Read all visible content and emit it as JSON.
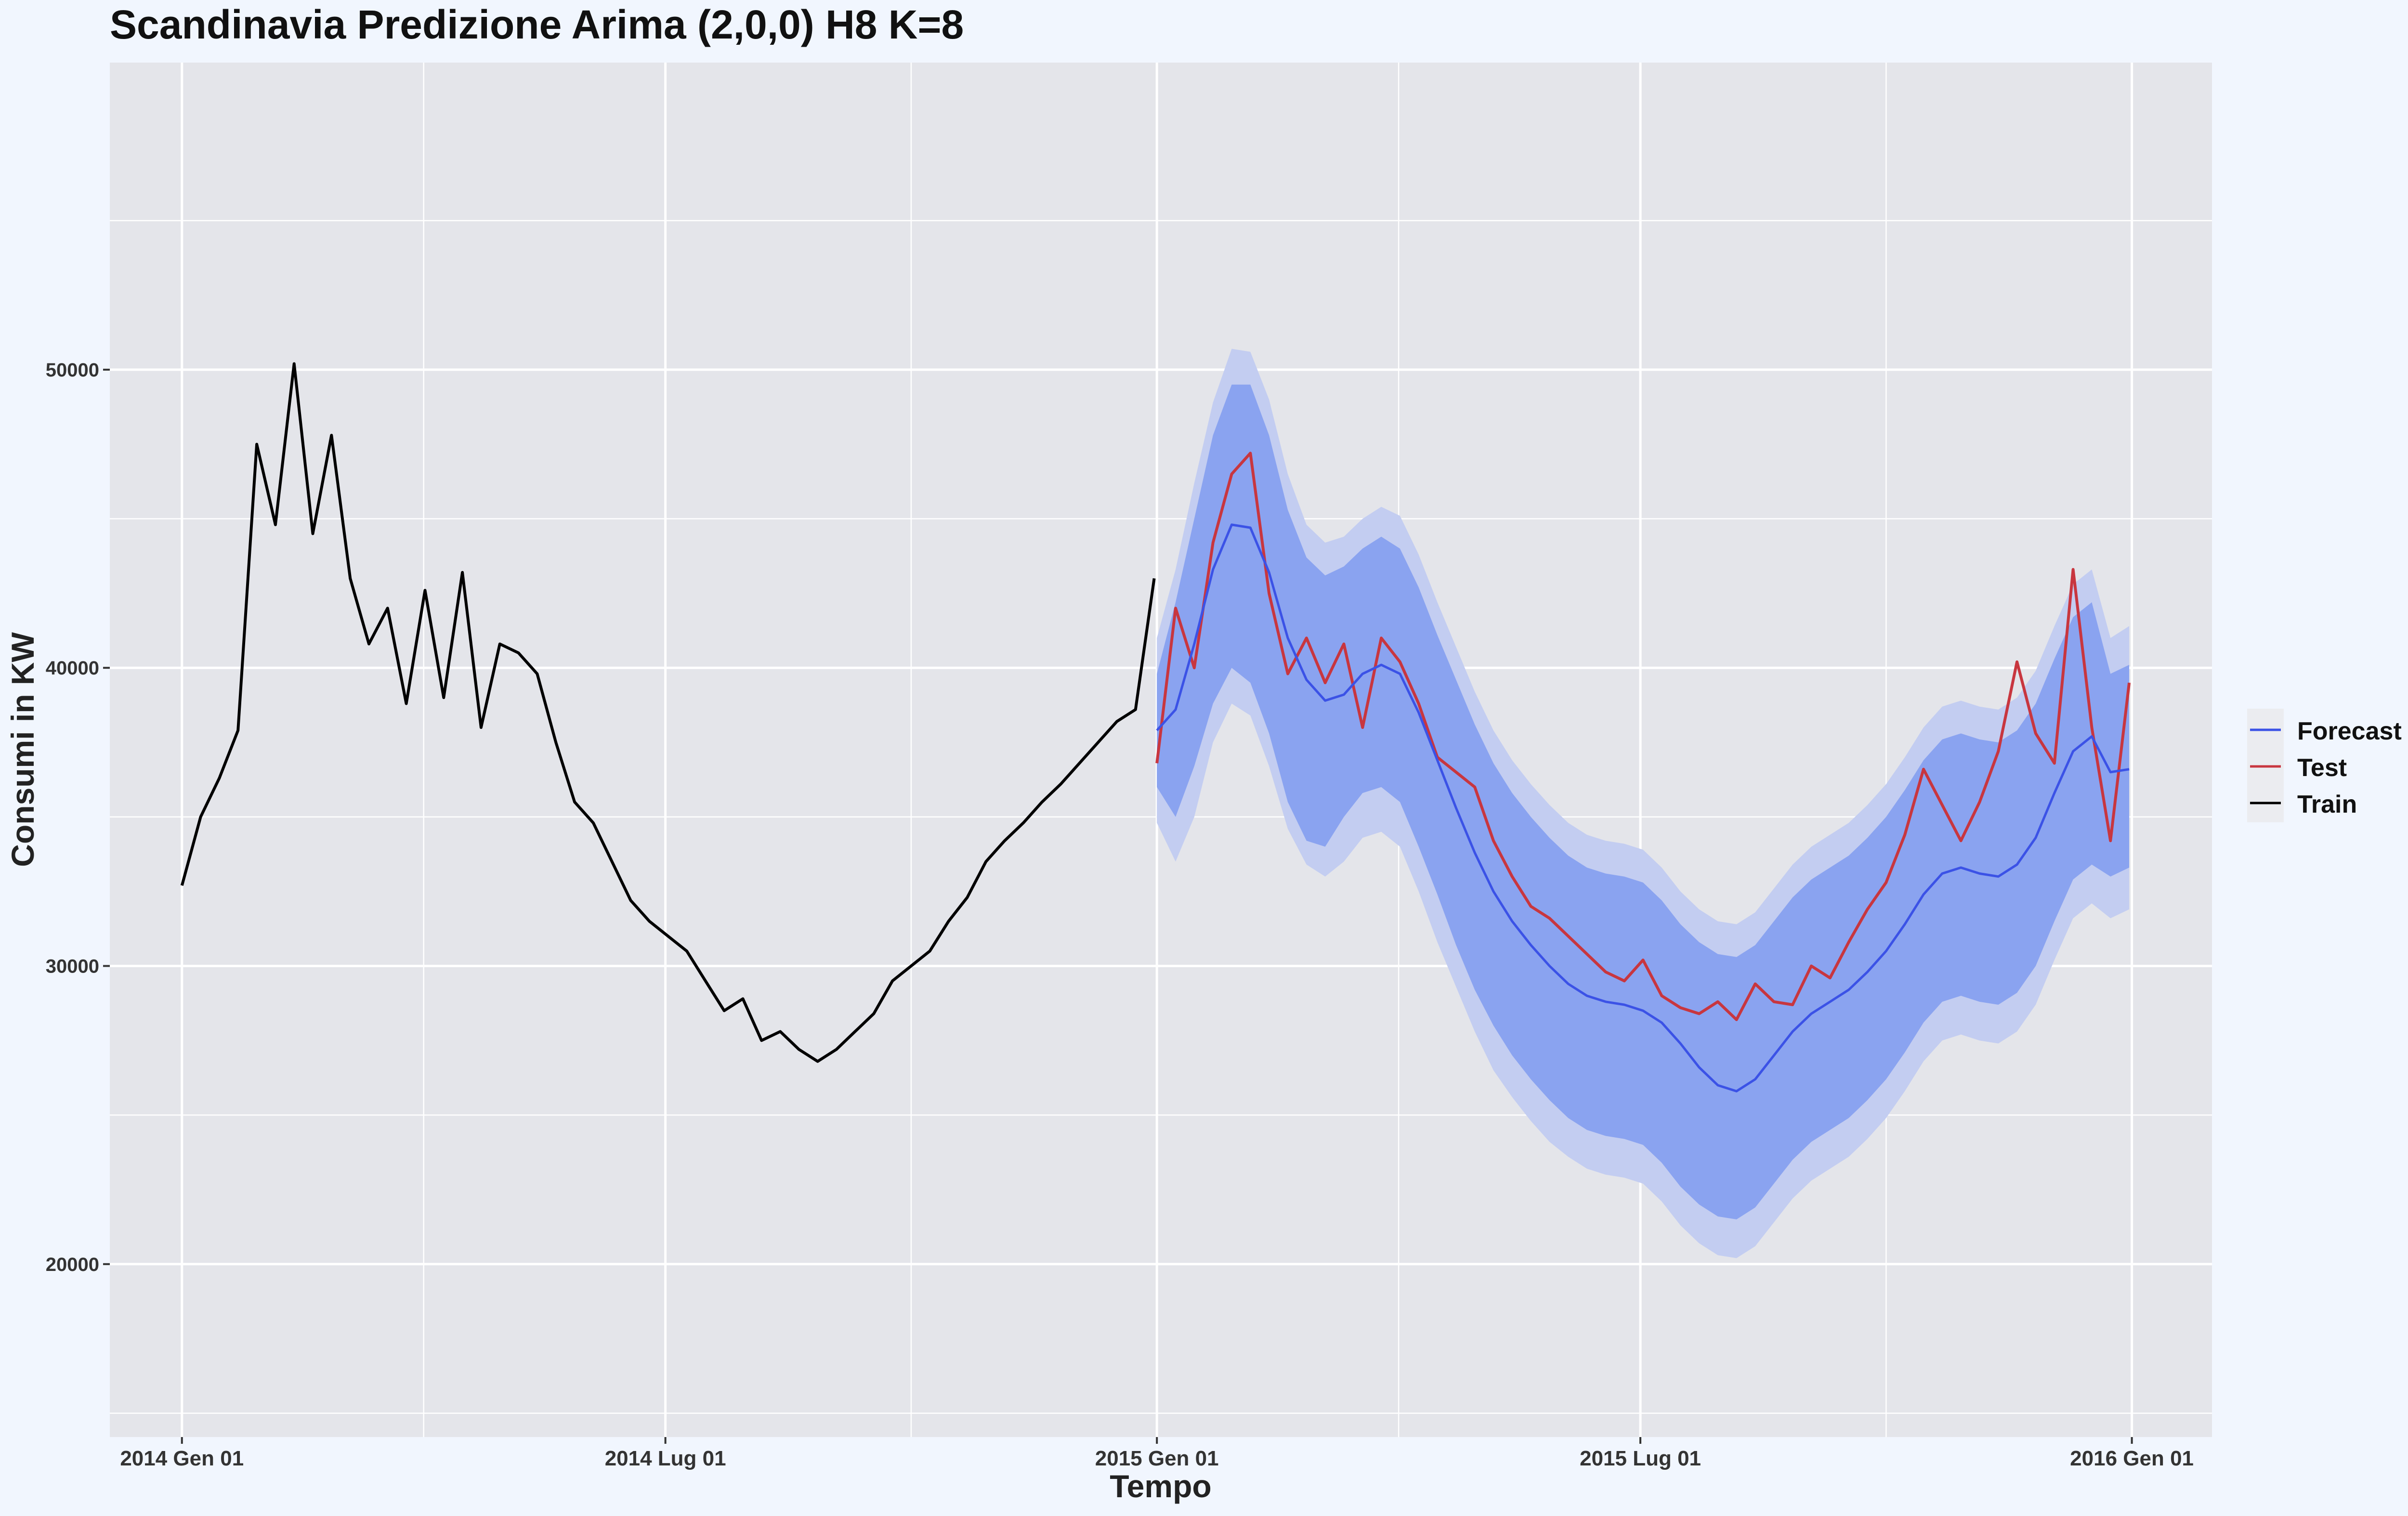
{
  "chart_data": {
    "type": "line",
    "title": "Scandinavia Predizione Arima (2,0,0) H8 K=8",
    "xlabel": "Tempo",
    "ylabel": "Consumi in KW",
    "x_ticks": [
      "2014 Gen 01",
      "2014 Lug 01",
      "2015 Gen 01",
      "2015 Lug 01",
      "2016 Gen 01"
    ],
    "x_tick_dates": [
      "2014-01-01",
      "2014-07-01",
      "2015-01-01",
      "2015-07-01",
      "2016-01-01"
    ],
    "xlim": [
      "2013-12-05",
      "2016-01-31"
    ],
    "y_ticks": [
      20000,
      30000,
      40000,
      50000
    ],
    "y_tick_labels": [
      "20000",
      "30000",
      "40000",
      "50000"
    ],
    "ylim": [
      14200,
      60300
    ],
    "grid": true,
    "legend_position": "right",
    "legend": [
      {
        "label": "Forecast",
        "color": "#3b52e6"
      },
      {
        "label": "Test",
        "color": "#c8363f"
      },
      {
        "label": "Train",
        "color": "#000000"
      }
    ],
    "colors": {
      "panel": "#e4e5ea",
      "grid": "#ffffff",
      "band80": "#8aa3f0",
      "band95": "#c3cdf1",
      "forecast": "#3b52e6",
      "test": "#c8363f",
      "train": "#000000"
    },
    "series": [
      {
        "name": "Train",
        "x": [
          "2014-01-01",
          "2014-01-08",
          "2014-01-15",
          "2014-01-22",
          "2014-01-29",
          "2014-02-05",
          "2014-02-12",
          "2014-02-19",
          "2014-02-26",
          "2014-03-05",
          "2014-03-12",
          "2014-03-19",
          "2014-03-26",
          "2014-04-02",
          "2014-04-09",
          "2014-04-16",
          "2014-04-23",
          "2014-04-30",
          "2014-05-07",
          "2014-05-14",
          "2014-05-21",
          "2014-05-28",
          "2014-06-04",
          "2014-06-11",
          "2014-06-18",
          "2014-06-25",
          "2014-07-02",
          "2014-07-09",
          "2014-07-16",
          "2014-07-23",
          "2014-07-30",
          "2014-08-06",
          "2014-08-13",
          "2014-08-20",
          "2014-08-27",
          "2014-09-03",
          "2014-09-10",
          "2014-09-17",
          "2014-09-24",
          "2014-10-01",
          "2014-10-08",
          "2014-10-15",
          "2014-10-22",
          "2014-10-29",
          "2014-11-05",
          "2014-11-12",
          "2014-11-19",
          "2014-11-26",
          "2014-12-03",
          "2014-12-10",
          "2014-12-17",
          "2014-12-24",
          "2014-12-31"
        ],
        "y": [
          32700,
          35000,
          36300,
          37900,
          47500,
          44800,
          50200,
          44500,
          47800,
          43000,
          40800,
          42000,
          38800,
          42600,
          39000,
          43200,
          38000,
          40800,
          40500,
          39800,
          37500,
          35500,
          34800,
          33500,
          32200,
          31500,
          31000,
          30500,
          29500,
          28500,
          28900,
          27500,
          27800,
          27200,
          26800,
          27200,
          27800,
          28400,
          29500,
          30000,
          30500,
          31500,
          32300,
          33500,
          34200,
          34800,
          35500,
          36100,
          36800,
          37500,
          38200,
          38600,
          43000
        ]
      },
      {
        "name": "Test",
        "x": [
          "2015-01-01",
          "2015-01-08",
          "2015-01-15",
          "2015-01-22",
          "2015-01-29",
          "2015-02-05",
          "2015-02-12",
          "2015-02-19",
          "2015-02-26",
          "2015-03-05",
          "2015-03-12",
          "2015-03-19",
          "2015-03-26",
          "2015-04-02",
          "2015-04-09",
          "2015-04-16",
          "2015-04-23",
          "2015-04-30",
          "2015-05-07",
          "2015-05-14",
          "2015-05-21",
          "2015-05-28",
          "2015-06-04",
          "2015-06-11",
          "2015-06-18",
          "2015-06-25",
          "2015-07-02",
          "2015-07-09",
          "2015-07-16",
          "2015-07-23",
          "2015-07-30",
          "2015-08-06",
          "2015-08-13",
          "2015-08-20",
          "2015-08-27",
          "2015-09-03",
          "2015-09-10",
          "2015-09-17",
          "2015-09-24",
          "2015-10-01",
          "2015-10-08",
          "2015-10-15",
          "2015-10-22",
          "2015-10-29",
          "2015-11-05",
          "2015-11-12",
          "2015-11-19",
          "2015-11-26",
          "2015-12-03",
          "2015-12-10",
          "2015-12-17",
          "2015-12-24",
          "2015-12-31"
        ],
        "y": [
          36800,
          42000,
          40000,
          44200,
          46500,
          47200,
          42500,
          39800,
          41000,
          39500,
          40800,
          38000,
          41000,
          40200,
          38800,
          37000,
          36500,
          36000,
          34200,
          33000,
          32000,
          31600,
          31000,
          30400,
          29800,
          29500,
          30200,
          29000,
          28600,
          28400,
          28800,
          28200,
          29400,
          28800,
          28700,
          30000,
          29600,
          30800,
          31900,
          32800,
          34400,
          36600,
          35400,
          34200,
          35500,
          37200,
          40200,
          37800,
          36800,
          43300,
          38000,
          34200,
          39500
        ]
      },
      {
        "name": "Forecast",
        "x": [
          "2015-01-01",
          "2015-01-08",
          "2015-01-15",
          "2015-01-22",
          "2015-01-29",
          "2015-02-05",
          "2015-02-12",
          "2015-02-19",
          "2015-02-26",
          "2015-03-05",
          "2015-03-12",
          "2015-03-19",
          "2015-03-26",
          "2015-04-02",
          "2015-04-09",
          "2015-04-16",
          "2015-04-23",
          "2015-04-30",
          "2015-05-07",
          "2015-05-14",
          "2015-05-21",
          "2015-05-28",
          "2015-06-04",
          "2015-06-11",
          "2015-06-18",
          "2015-06-25",
          "2015-07-02",
          "2015-07-09",
          "2015-07-16",
          "2015-07-23",
          "2015-07-30",
          "2015-08-06",
          "2015-08-13",
          "2015-08-20",
          "2015-08-27",
          "2015-09-03",
          "2015-09-10",
          "2015-09-17",
          "2015-09-24",
          "2015-10-01",
          "2015-10-08",
          "2015-10-15",
          "2015-10-22",
          "2015-10-29",
          "2015-11-05",
          "2015-11-12",
          "2015-11-19",
          "2015-11-26",
          "2015-12-03",
          "2015-12-10",
          "2015-12-17",
          "2015-12-24",
          "2015-12-31"
        ],
        "y": [
          37900,
          38600,
          40800,
          43300,
          44800,
          44700,
          43200,
          41000,
          39600,
          38900,
          39100,
          39800,
          40100,
          39800,
          38500,
          36900,
          35300,
          33800,
          32500,
          31500,
          30700,
          30000,
          29400,
          29000,
          28800,
          28700,
          28500,
          28100,
          27400,
          26600,
          26000,
          25800,
          26200,
          27000,
          27800,
          28400,
          28800,
          29200,
          29800,
          30500,
          31400,
          32400,
          33100,
          33300,
          33100,
          33000,
          33400,
          34300,
          35800,
          37200,
          37700,
          36500,
          36600
        ]
      }
    ],
    "bands": {
      "x": [
        "2015-01-01",
        "2015-01-08",
        "2015-01-15",
        "2015-01-22",
        "2015-01-29",
        "2015-02-05",
        "2015-02-12",
        "2015-02-19",
        "2015-02-26",
        "2015-03-05",
        "2015-03-12",
        "2015-03-19",
        "2015-03-26",
        "2015-04-02",
        "2015-04-09",
        "2015-04-16",
        "2015-04-23",
        "2015-04-30",
        "2015-05-07",
        "2015-05-14",
        "2015-05-21",
        "2015-05-28",
        "2015-06-04",
        "2015-06-11",
        "2015-06-18",
        "2015-06-25",
        "2015-07-02",
        "2015-07-09",
        "2015-07-16",
        "2015-07-23",
        "2015-07-30",
        "2015-08-06",
        "2015-08-13",
        "2015-08-20",
        "2015-08-27",
        "2015-09-03",
        "2015-09-10",
        "2015-09-17",
        "2015-09-24",
        "2015-10-01",
        "2015-10-08",
        "2015-10-15",
        "2015-10-22",
        "2015-10-29",
        "2015-11-05",
        "2015-11-12",
        "2015-11-19",
        "2015-11-26",
        "2015-12-03",
        "2015-12-10",
        "2015-12-17",
        "2015-12-24",
        "2015-12-31"
      ],
      "lo80": [
        36000,
        35000,
        36700,
        38800,
        40000,
        39500,
        37800,
        35500,
        34200,
        34000,
        35000,
        35800,
        36000,
        35500,
        34000,
        32400,
        30700,
        29200,
        28000,
        27000,
        26200,
        25500,
        24900,
        24500,
        24300,
        24200,
        24000,
        23400,
        22600,
        22000,
        21600,
        21500,
        21900,
        22700,
        23500,
        24100,
        24500,
        24900,
        25500,
        26200,
        27100,
        28100,
        28800,
        29000,
        28800,
        28700,
        29100,
        30000,
        31500,
        32900,
        33400,
        33000,
        33300
      ],
      "hi80": [
        39800,
        42200,
        45000,
        47800,
        49500,
        49500,
        47800,
        45300,
        43700,
        43100,
        43400,
        44000,
        44400,
        44000,
        42700,
        41100,
        39600,
        38100,
        36800,
        35800,
        35000,
        34300,
        33700,
        33300,
        33100,
        33000,
        32800,
        32200,
        31400,
        30800,
        30400,
        30300,
        30700,
        31500,
        32300,
        32900,
        33300,
        33700,
        34300,
        35000,
        35900,
        36900,
        37600,
        37800,
        37600,
        37500,
        37900,
        38800,
        40300,
        41700,
        42200,
        39800,
        40100
      ],
      "lo95": [
        34800,
        33500,
        35000,
        37500,
        38800,
        38400,
        36700,
        34600,
        33400,
        33000,
        33500,
        34300,
        34500,
        34000,
        32500,
        30800,
        29300,
        27800,
        26500,
        25600,
        24800,
        24100,
        23600,
        23200,
        23000,
        22900,
        22700,
        22100,
        21300,
        20700,
        20300,
        20200,
        20600,
        21400,
        22200,
        22800,
        23200,
        23600,
        24200,
        24900,
        25800,
        26800,
        27500,
        27700,
        27500,
        27400,
        27800,
        28700,
        30200,
        31600,
        32100,
        31600,
        31900
      ],
      "hi95": [
        41000,
        43300,
        46200,
        48900,
        50700,
        50600,
        49000,
        46500,
        44800,
        44200,
        44400,
        45000,
        45400,
        45100,
        43800,
        42200,
        40700,
        39200,
        37900,
        36900,
        36100,
        35400,
        34800,
        34400,
        34200,
        34100,
        33900,
        33300,
        32500,
        31900,
        31500,
        31400,
        31800,
        32600,
        33400,
        34000,
        34400,
        34800,
        35400,
        36100,
        37000,
        38000,
        38700,
        38900,
        38700,
        38600,
        39000,
        39900,
        41400,
        42800,
        43300,
        41000,
        41400
      ]
    }
  }
}
